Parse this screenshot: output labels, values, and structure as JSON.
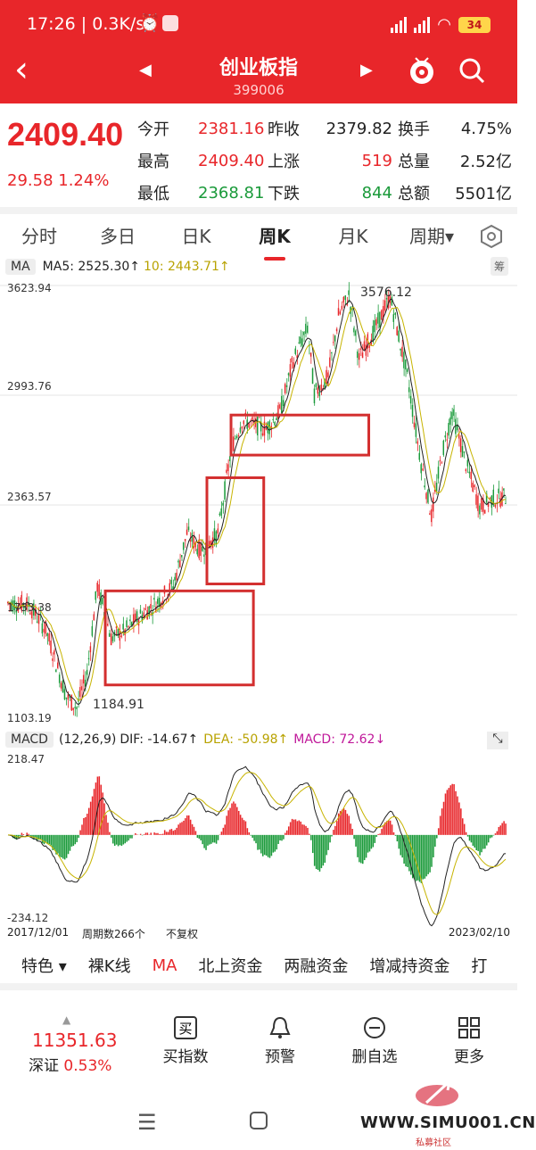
{
  "status": {
    "time": "17:26 | 0.3K/s",
    "battery": "34"
  },
  "header": {
    "title": "创业板指",
    "code": "399006"
  },
  "quote": {
    "price": "2409.40",
    "change": "29.58 1.24%",
    "rows": [
      [
        {
          "l": "今开",
          "v": "2381.16",
          "c": "red"
        },
        {
          "l": "昨收",
          "v": "2379.82",
          "c": ""
        },
        {
          "l": "换手",
          "v": "4.75%",
          "c": ""
        }
      ],
      [
        {
          "l": "最高",
          "v": "2409.40",
          "c": "red"
        },
        {
          "l": "上涨",
          "v": "519",
          "c": "red"
        },
        {
          "l": "总量",
          "v": "2.52亿",
          "c": ""
        }
      ],
      [
        {
          "l": "最低",
          "v": "2368.81",
          "c": "green"
        },
        {
          "l": "下跌",
          "v": "844",
          "c": "green"
        },
        {
          "l": "总额",
          "v": "5501亿",
          "c": ""
        }
      ]
    ]
  },
  "tabs": [
    "分时",
    "多日",
    "日K",
    "周K",
    "月K",
    "周期▾"
  ],
  "kline": {
    "ma_label": "MA",
    "ma5": "MA5: 2525.30↑",
    "ma10": "10: 2443.71↑",
    "chou": "筹",
    "y_top": "3623.94",
    "y_mid": "2993.76",
    "y_low": "2363.57",
    "y_bot": "1103.19",
    "y_partial": "1733.38",
    "peak": "3576.12",
    "trough": "1184.91"
  },
  "macd": {
    "label": "MACD",
    "params": "(12,26,9)",
    "dif": "DIF: -14.67↑",
    "dea": "DEA: -50.98↑",
    "macd": "MACD: 72.62↓",
    "top": "218.47",
    "bottom": "-234.12"
  },
  "footer": {
    "start": "2017/12/01",
    "periods": "周期数266个",
    "adjust": "不复权",
    "end": "2023/02/10"
  },
  "indicators": [
    "特色 ▾",
    "裸K线",
    "MA",
    "北上资金",
    "两融资金",
    "增减持资金",
    "打"
  ],
  "bottom": {
    "index_value": "11351.63",
    "index_name": "深证",
    "index_change": "0.53%",
    "actions": [
      "买指数",
      "预警",
      "删自选",
      "更多"
    ]
  },
  "watermark": {
    "site": "WWW.SIMU001.CN",
    "sub": "私募社区"
  },
  "colors": {
    "accent": "#e8262a",
    "up": "#e8262a",
    "down": "#1a9a3a",
    "ma5": "#222222",
    "ma10": "#c7b400",
    "box": "#d32f2f"
  }
}
